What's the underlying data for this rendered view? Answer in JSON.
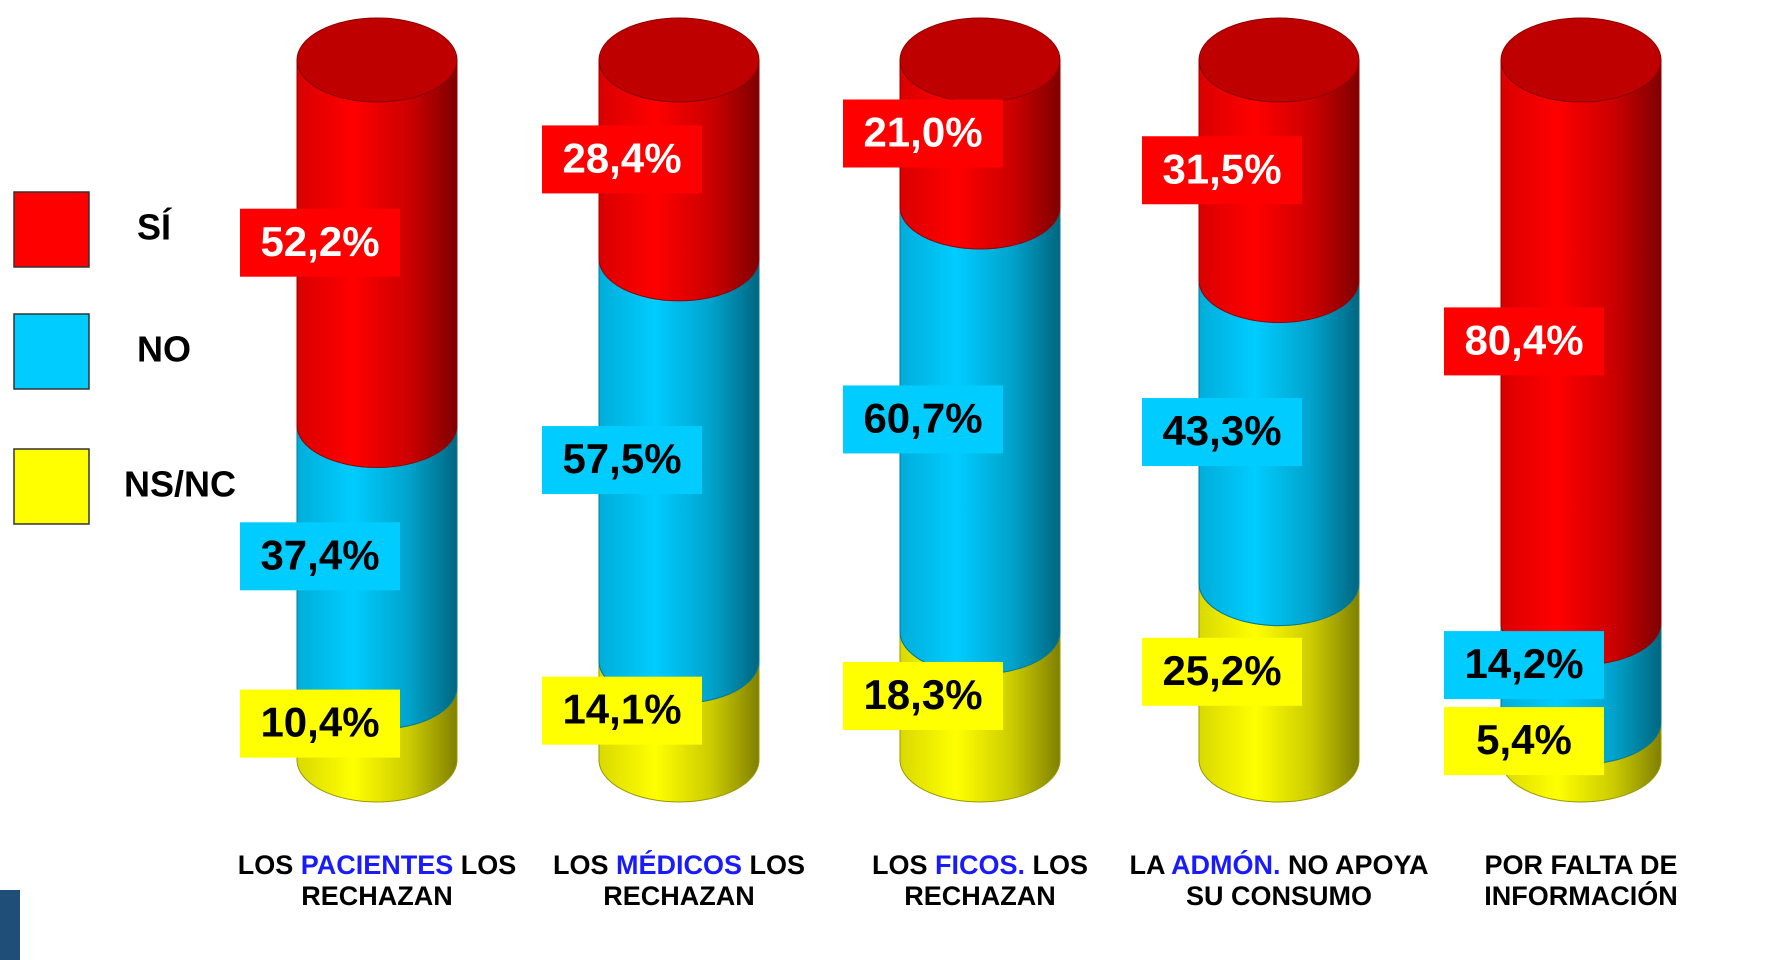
{
  "chart_data": {
    "type": "stacked_cylinder",
    "categories": [
      [
        "LOS ",
        "PACIENTES",
        " LOS RECHAZAN"
      ],
      [
        "LOS ",
        "MÉDICOS",
        " LOS RECHAZAN"
      ],
      [
        "LOS ",
        "FICOS.",
        " LOS RECHAZAN"
      ],
      [
        "LA ",
        "ADMÓN.",
        " NO APOYA SU CONSUMO"
      ],
      [
        "POR FALTA DE INFORMACIÓN"
      ]
    ],
    "highlight_color": "#1a1aff",
    "series": [
      {
        "name": "SÍ",
        "color": "#ff0000",
        "values": [
          52.2,
          28.4,
          21.0,
          31.5,
          80.4
        ],
        "value_labels": [
          "52,2%",
          "28,4%",
          "21,0%",
          "31,5%",
          "80,4%"
        ]
      },
      {
        "name": "NO",
        "color": "#00ccff",
        "values": [
          37.4,
          57.5,
          60.7,
          43.3,
          14.2
        ],
        "value_labels": [
          "37,4%",
          "57,5%",
          "60,7%",
          "43,3%",
          "14,2%"
        ]
      },
      {
        "name": "NS/NC",
        "color": "#ffff00",
        "values": [
          10.4,
          14.1,
          18.3,
          25.2,
          5.4
        ],
        "value_labels": [
          "10,4%",
          "14,1%",
          "18,3%",
          "25,2%",
          "5,4%"
        ]
      }
    ]
  }
}
